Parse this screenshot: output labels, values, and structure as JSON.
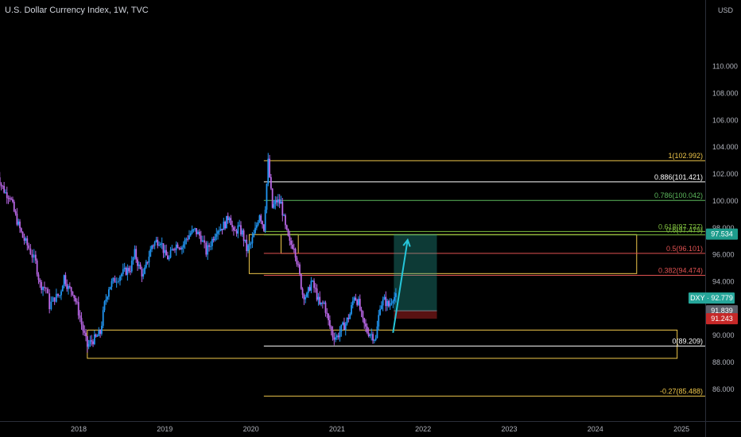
{
  "header": {
    "title": "U.S. Dollar Currency Index, 1W, TVC"
  },
  "chart_data": {
    "type": "candlestick",
    "instrument": "DXY",
    "timeframe": "1W",
    "source": "TVC",
    "currency_label": "USD",
    "y_axis": {
      "range": [
        84.5,
        110.5
      ],
      "ticks": [
        "86.000",
        "88.000",
        "90.000",
        "92.000",
        "94.000",
        "96.000",
        "98.000",
        "100.000",
        "102.000",
        "104.000",
        "106.000",
        "108.000",
        "110.000"
      ]
    },
    "x_axis": {
      "ticks": [
        {
          "label": "2018",
          "t": 2018.0
        },
        {
          "label": "2019",
          "t": 2019.0
        },
        {
          "label": "2020",
          "t": 2020.0
        },
        {
          "label": "2021",
          "t": 2021.0
        },
        {
          "label": "2022",
          "t": 2022.0
        },
        {
          "label": "2023",
          "t": 2023.0
        },
        {
          "label": "2024",
          "t": 2024.0
        },
        {
          "label": "2025",
          "t": 2025.0
        }
      ]
    },
    "price_path": [
      [
        2017.05,
        102.3
      ],
      [
        2017.1,
        101.2
      ],
      [
        2017.15,
        100.6
      ],
      [
        2017.2,
        100.4
      ],
      [
        2017.25,
        99.2
      ],
      [
        2017.3,
        98.2
      ],
      [
        2017.35,
        97.3
      ],
      [
        2017.42,
        96.5
      ],
      [
        2017.5,
        95.4
      ],
      [
        2017.55,
        93.8
      ],
      [
        2017.62,
        93.5
      ],
      [
        2017.66,
        92.2
      ],
      [
        2017.72,
        92.8
      ],
      [
        2017.78,
        93.0
      ],
      [
        2017.83,
        94.4
      ],
      [
        2017.88,
        93.5
      ],
      [
        2017.93,
        93.3
      ],
      [
        2017.98,
        92.2
      ],
      [
        2018.05,
        90.4
      ],
      [
        2018.1,
        89.2
      ],
      [
        2018.15,
        89.6
      ],
      [
        2018.2,
        89.8
      ],
      [
        2018.25,
        90.2
      ],
      [
        2018.3,
        92.3
      ],
      [
        2018.35,
        93.6
      ],
      [
        2018.4,
        94.0
      ],
      [
        2018.48,
        94.5
      ],
      [
        2018.55,
        94.8
      ],
      [
        2018.6,
        95.0
      ],
      [
        2018.65,
        96.1
      ],
      [
        2018.7,
        95.1
      ],
      [
        2018.75,
        94.4
      ],
      [
        2018.8,
        95.6
      ],
      [
        2018.85,
        96.7
      ],
      [
        2018.9,
        97.0
      ],
      [
        2018.95,
        97.1
      ],
      [
        2019.0,
        96.0
      ],
      [
        2019.05,
        95.7
      ],
      [
        2019.1,
        96.6
      ],
      [
        2019.15,
        96.8
      ],
      [
        2019.2,
        96.6
      ],
      [
        2019.25,
        97.2
      ],
      [
        2019.3,
        97.6
      ],
      [
        2019.35,
        97.8
      ],
      [
        2019.42,
        97.3
      ],
      [
        2019.48,
        96.2
      ],
      [
        2019.55,
        97.1
      ],
      [
        2019.6,
        97.9
      ],
      [
        2019.65,
        98.0
      ],
      [
        2019.7,
        98.3
      ],
      [
        2019.75,
        99.0
      ],
      [
        2019.8,
        97.5
      ],
      [
        2019.85,
        98.0
      ],
      [
        2019.9,
        97.6
      ],
      [
        2019.95,
        96.4
      ],
      [
        2020.0,
        96.8
      ],
      [
        2020.05,
        97.8
      ],
      [
        2020.1,
        99.1
      ],
      [
        2020.15,
        98.0
      ],
      [
        2020.2,
        102.9
      ],
      [
        2020.25,
        99.5
      ],
      [
        2020.3,
        100.0
      ],
      [
        2020.35,
        99.8
      ],
      [
        2020.4,
        98.0
      ],
      [
        2020.45,
        96.8
      ],
      [
        2020.5,
        96.7
      ],
      [
        2020.55,
        95.0
      ],
      [
        2020.6,
        93.1
      ],
      [
        2020.65,
        92.9
      ],
      [
        2020.7,
        94.0
      ],
      [
        2020.75,
        93.3
      ],
      [
        2020.8,
        92.2
      ],
      [
        2020.85,
        92.4
      ],
      [
        2020.9,
        91.0
      ],
      [
        2020.95,
        90.0
      ],
      [
        2021.0,
        89.9
      ],
      [
        2021.05,
        90.5
      ],
      [
        2021.1,
        90.9
      ],
      [
        2021.15,
        91.6
      ],
      [
        2021.2,
        93.0
      ],
      [
        2021.25,
        92.4
      ],
      [
        2021.3,
        91.0
      ],
      [
        2021.35,
        90.3
      ],
      [
        2021.4,
        90.1
      ],
      [
        2021.45,
        89.7
      ],
      [
        2021.5,
        92.3
      ],
      [
        2021.55,
        92.6
      ],
      [
        2021.6,
        92.2
      ],
      [
        2021.65,
        92.9
      ],
      [
        2021.7,
        92.8
      ]
    ],
    "fib_levels": [
      {
        "label": "1(102.992)",
        "value": 102.992,
        "color": "#f0c84b"
      },
      {
        "label": "0.886(101.421)",
        "value": 101.421,
        "color": "#ffffff"
      },
      {
        "label": "0.786(100.042)",
        "value": 100.042,
        "color": "#5cb85c"
      },
      {
        "label": "0.618(97.727)",
        "value": 97.727,
        "color": "#7fbf3f"
      },
      {
        "label": "0.6(97.479)",
        "value": 97.479,
        "color": "#7fbf3f"
      },
      {
        "label": "0.5(96.101)",
        "value": 96.101,
        "color": "#e05252"
      },
      {
        "label": "0.382(94.474)",
        "value": 94.474,
        "color": "#e05252"
      },
      {
        "label": "0(89.209)",
        "value": 89.209,
        "color": "#ffffff"
      },
      {
        "label": "-0.27(85.488)",
        "value": 85.488,
        "color": "#f0c84b"
      }
    ],
    "price_labels": [
      {
        "label": "97.534",
        "value": 97.534,
        "bg": "#1e9c8c",
        "color": "#ffffff"
      },
      {
        "label": "DXY · 92.779",
        "value": 92.779,
        "bg": "#26a69a",
        "color": "#ffffff"
      },
      {
        "label": "91.839",
        "value": 91.839,
        "bg": "#5d606b",
        "color": "#ffffff"
      },
      {
        "label": "91.243",
        "value": 91.243,
        "bg": "#c62828",
        "color": "#ffffff"
      }
    ],
    "position": {
      "entry": 91.839,
      "target": 97.534,
      "stop": 91.243,
      "start_t": 2021.66,
      "end_t": 2022.16
    },
    "projection": {
      "from": [
        2021.65,
        90.2
      ],
      "to": [
        2021.82,
        97.1
      ],
      "color": "#26c6da"
    },
    "zones": [
      {
        "t0": 2019.98,
        "t1": 2024.48,
        "top": 97.5,
        "bottom": 94.6,
        "color": "#f0c84b"
      },
      {
        "t0": 2018.1,
        "t1": 2024.95,
        "top": 90.4,
        "bottom": 88.3,
        "color": "#f0c84b"
      },
      {
        "t0": 2020.35,
        "t1": 2020.55,
        "top": 97.5,
        "bottom": 96.1,
        "color": "#f0c84b"
      }
    ]
  }
}
